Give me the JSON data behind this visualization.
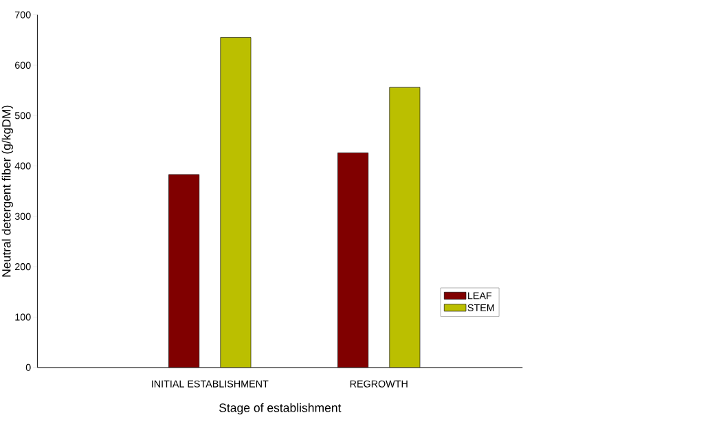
{
  "chart_data": {
    "type": "bar",
    "xlabel": "Stage of establishment",
    "ylabel": "Neutral detergent fiber (g/kgDM)",
    "categories": [
      "INITIAL ESTABLISHMENT",
      "REGROWTH"
    ],
    "series": [
      {
        "name": "LEAF",
        "color": "#800000",
        "values": [
          383,
          426
        ]
      },
      {
        "name": "STEM",
        "color": "#bbbf00",
        "values": [
          655,
          556
        ]
      }
    ],
    "ylim": [
      0,
      700
    ],
    "yticks": [
      0,
      100,
      200,
      300,
      400,
      500,
      600,
      700
    ],
    "grid": false,
    "legend": "bottom right"
  }
}
